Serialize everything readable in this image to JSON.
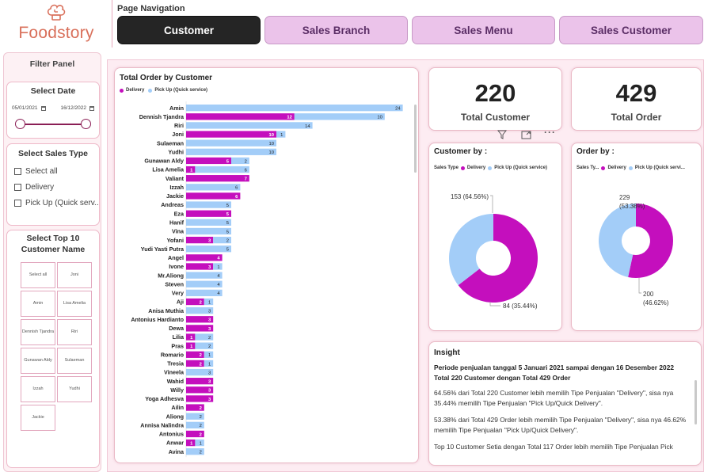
{
  "app": {
    "logo_text": "Foodstory"
  },
  "nav": {
    "title": "Page Navigation",
    "buttons": [
      "Customer",
      "Sales Branch",
      "Sales Menu",
      "Sales Customer"
    ]
  },
  "filters": {
    "title": "Filter Panel",
    "date": {
      "title": "Select Date",
      "start": "05/01/2021",
      "end": "16/12/2022"
    },
    "sales_type": {
      "title": "Select Sales Type",
      "options": [
        "Select all",
        "Delivery",
        "Pick Up (Quick serv..."
      ]
    },
    "top10": {
      "title": "Select Top 10 Customer Name",
      "tiles": [
        "Select all",
        "Joni",
        "Amin",
        "Lisa Amelia",
        "Dennish Tjandra",
        "Riri",
        "Gunawan Aldy",
        "Sulaeman",
        "Izzah",
        "Yudhi",
        "Jackie"
      ]
    }
  },
  "colors": {
    "delivery": "#c40fbd",
    "pickup": "#a3cdf8"
  },
  "chart_data": [
    {
      "type": "bar",
      "orientation": "horizontal",
      "stacked": true,
      "title": "Total Order by Customer",
      "legend": [
        "Delivery",
        "Pick Up (Quick service)"
      ],
      "categories": [
        "Amin",
        "Dennish Tjandra",
        "Riri",
        "Joni",
        "Sulaeman",
        "Yudhi",
        "Gunawan Aldy",
        "Lisa Amelia",
        "Valiant",
        "Izzah",
        "Jackie",
        "Andreas",
        "Eza",
        "Hanif",
        "Vina",
        "Yofani",
        "Yudi Yasti Putra",
        "Angel",
        "Ivone",
        "Mr.Aliong",
        "Steven",
        "Very",
        "Aji",
        "Anisa Muthia",
        "Antonius Hardianto",
        "Dewa",
        "Lilia",
        "Pras",
        "Romario",
        "Tresia",
        "Vineela",
        "Wahid",
        "Willy",
        "Yoga Adhesva",
        "Ailin",
        "Aliong",
        "Annisa Nalindra",
        "Antonius",
        "Anwar",
        "Avina"
      ],
      "series": [
        {
          "name": "Delivery",
          "values": [
            0,
            12,
            0,
            10,
            0,
            0,
            5,
            1,
            7,
            0,
            6,
            0,
            5,
            0,
            0,
            3,
            0,
            4,
            3,
            0,
            0,
            0,
            2,
            0,
            3,
            3,
            1,
            1,
            2,
            2,
            0,
            3,
            3,
            3,
            2,
            0,
            0,
            2,
            1,
            0
          ]
        },
        {
          "name": "Pick Up (Quick service)",
          "values": [
            24,
            10,
            14,
            1,
            10,
            10,
            2,
            6,
            0,
            6,
            0,
            5,
            0,
            5,
            5,
            2,
            5,
            0,
            1,
            4,
            4,
            4,
            1,
            3,
            0,
            0,
            2,
            2,
            1,
            1,
            3,
            0,
            0,
            0,
            0,
            2,
            2,
            0,
            1,
            2
          ]
        }
      ]
    },
    {
      "type": "pie",
      "title": "Customer by :",
      "legend_title": "Sales Type",
      "labels": [
        "Delivery",
        "Pick Up (Quick service)"
      ],
      "values": [
        153,
        84
      ],
      "data_labels": [
        "153 (64.56%)",
        "84 (35.44%)"
      ]
    },
    {
      "type": "pie",
      "title": "Order by :",
      "legend_title": "Sales Ty...",
      "labels": [
        "Delivery",
        "Pick Up (Quick servi..."
      ],
      "values": [
        229,
        200
      ],
      "data_labels": [
        "229 (53.38%)",
        "200 (46.62%)"
      ]
    }
  ],
  "kpis": [
    {
      "value": "220",
      "label": "Total Customer"
    },
    {
      "value": "429",
      "label": "Total Order"
    }
  ],
  "insight": {
    "title": "Insight",
    "headline": "Periode penjualan tanggal 5 Januari 2021 sampai dengan 16 Desember 2022 Total 220 Customer dengan Total 429 Order",
    "paragraphs": [
      "64.56% dari Total 220 Customer lebih memilih Tipe Penjualan \"Delivery\", sisa nya 35.44% memilih Tipe Penjualan \"Pick Up/Quick Delivery\".",
      "53.38% dari Total 429 Order lebih memilih Tipe Penjualan \"Delivery\", sisa nya 46.62% memilih Tipe Penjualan \"Pick Up/Quick Delivery\".",
      "Top 10 Customer Setia dengan Total 117 Order lebih memilih Tipe Penjualan Pick"
    ]
  }
}
